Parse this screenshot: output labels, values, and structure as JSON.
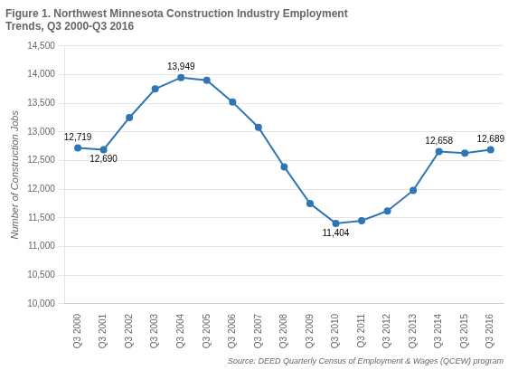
{
  "chart_data": {
    "type": "line",
    "title": "Figure 1. Northwest Minnesota Construction Industry Employment\nTrends, Q3 2000-Q3 2016",
    "ylabel": "Number of Construction Jobs",
    "source": "Source: DEED Quarterly Census of Employment & Wages (QCEW) program",
    "categories": [
      "Q3 2000",
      "Q3 2001",
      "Q3 2002",
      "Q3 2003",
      "Q3 2004",
      "Q3 2005",
      "Q3 2006",
      "Q3 2007",
      "Q3 2008",
      "Q3 2009",
      "Q3 2010",
      "Q3 2011",
      "Q3 2012",
      "Q3 2013",
      "Q3 2014",
      "Q3 2015",
      "Q3 2016"
    ],
    "values": [
      12719,
      12690,
      13250,
      13750,
      13949,
      13900,
      13520,
      13080,
      12390,
      11750,
      11404,
      11450,
      11620,
      11980,
      12658,
      12630,
      12689
    ],
    "color": "#2E75B6",
    "marker": "circle",
    "annotations": [
      {
        "x": "Q3 2000",
        "y": 12719,
        "text": "12,719"
      },
      {
        "x": "Q3 2001",
        "y": 12690,
        "text": "12,690"
      },
      {
        "x": "Q3 2004",
        "y": 13949,
        "text": "13,949"
      },
      {
        "x": "Q3 2010",
        "y": 11404,
        "text": "11,404"
      },
      {
        "x": "Q3 2014",
        "y": 12658,
        "text": "12,658"
      },
      {
        "x": "Q3 2016",
        "y": 12689,
        "text": "12,689"
      }
    ],
    "ylim": [
      10000,
      14500
    ],
    "yticks": [
      {
        "value": 10000,
        "label": "10,000"
      },
      {
        "value": 10500,
        "label": "10,500"
      },
      {
        "value": 11000,
        "label": "11,000"
      },
      {
        "value": 11500,
        "label": "11,500"
      },
      {
        "value": 12000,
        "label": "12,000"
      },
      {
        "value": 12500,
        "label": "12,500"
      },
      {
        "value": 13000,
        "label": "13,000"
      },
      {
        "value": 13500,
        "label": "13,500"
      },
      {
        "value": 14000,
        "label": "14,000"
      },
      {
        "value": 14500,
        "label": "14,500"
      }
    ],
    "grid": true
  }
}
